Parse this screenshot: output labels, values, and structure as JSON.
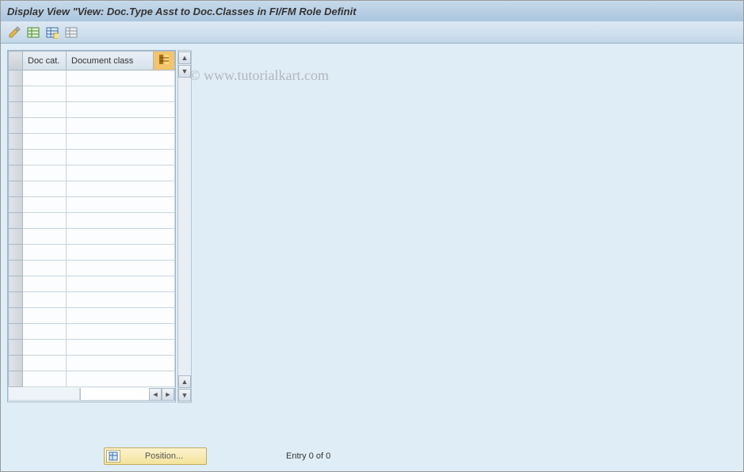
{
  "colors": {
    "title_gradient_top": "#c8daea",
    "title_gradient_bottom": "#aac5dd",
    "toolbar_gradient_top": "#dde9f3",
    "toolbar_gradient_bottom": "#c3d7e8",
    "content_bg": "#dfedf6",
    "header_border": "#aab9c6",
    "cell_border": "#c7d4df",
    "config_btn_bg": "#f2c46d",
    "position_btn_bg_top": "#fcf3ce",
    "position_btn_bg_bottom": "#f4e39a"
  },
  "title": "Display View \"View: Doc.Type Asst to Doc.Classes in FI/FM Role Definit",
  "toolbar": {
    "icons": [
      "edit-icon",
      "table-green-icon",
      "table-blue-icon",
      "table-gray-icon"
    ]
  },
  "table": {
    "columns": {
      "doc_cat": "Doc cat.",
      "doc_class": "Document class"
    },
    "row_count": 20,
    "column_widths": {
      "sel": 18,
      "doc_cat": 55,
      "doc_class": 110,
      "config": 22
    }
  },
  "footer": {
    "position_label": "Position...",
    "entry_text": "Entry 0 of 0"
  },
  "watermark": "© www.tutorialkart.com"
}
